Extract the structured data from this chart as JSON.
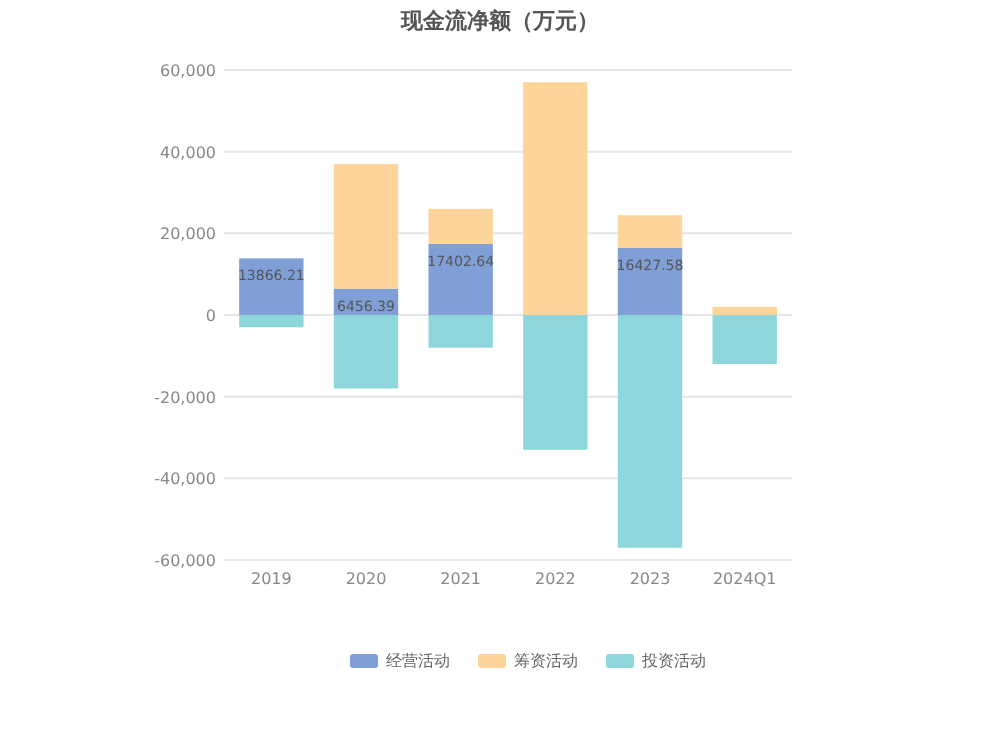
{
  "chart_data": {
    "type": "bar",
    "title": "现金流净额（万元）",
    "stacked": true,
    "categories": [
      "2019",
      "2020",
      "2021",
      "2022",
      "2023",
      "2024Q1"
    ],
    "series": [
      {
        "name": "经营活动",
        "color": "#7f9fd6",
        "values": [
          13866.21,
          6456.39,
          17402.64,
          null,
          16427.58,
          null
        ],
        "value_labels": [
          "13866.21",
          "6456.39",
          "17402.64",
          null,
          "16427.58",
          null
        ]
      },
      {
        "name": "筹资活动",
        "color": "#fdd59a",
        "values": [
          null,
          30500,
          8600,
          57000,
          8000,
          2000
        ]
      },
      {
        "name": "投资活动",
        "color": "#8dd6db",
        "values": [
          -3000,
          -18000,
          -8000,
          -33000,
          -57000,
          -12000
        ]
      }
    ],
    "ylim": [
      -60000,
      60000
    ],
    "yticks": [
      {
        "value": -60000,
        "label": "-60,000"
      },
      {
        "value": -40000,
        "label": "-40,000"
      },
      {
        "value": -20000,
        "label": "-20,000"
      },
      0,
      {
        "value": 20000,
        "label": "20,000"
      },
      {
        "value": 40000,
        "label": "40,000"
      },
      {
        "value": 60000,
        "label": "60,000"
      }
    ],
    "grid": "y",
    "legend": "bottom"
  }
}
